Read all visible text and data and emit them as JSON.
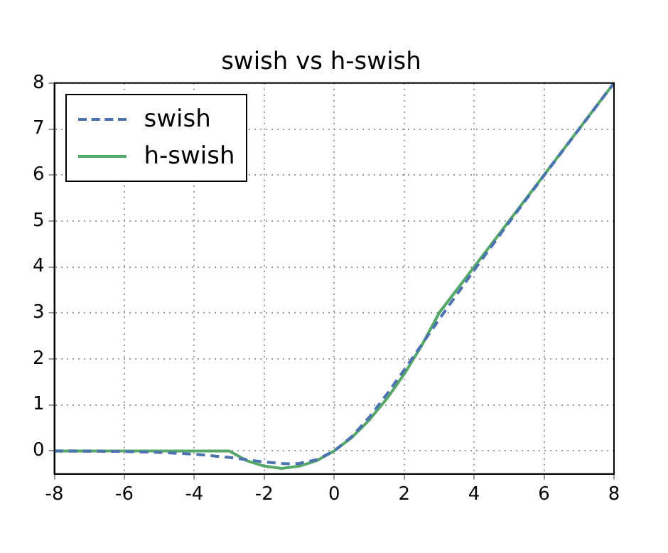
{
  "chart_data": {
    "type": "line",
    "title": "swish vs h-swish",
    "series": [
      {
        "name": "swish",
        "color": "#4c72b0",
        "line_style": "dashed",
        "x": [
          -8,
          -6,
          -5,
          -4,
          -3,
          -2.5,
          -2,
          -1.5,
          -1.25,
          -1,
          -0.5,
          0,
          0.5,
          1,
          1.5,
          2,
          2.5,
          3,
          4,
          5,
          6,
          8
        ],
        "values": [
          0,
          -0.01,
          -0.03,
          -0.07,
          -0.14,
          -0.19,
          -0.24,
          -0.27,
          -0.28,
          -0.27,
          -0.19,
          0,
          0.31,
          0.73,
          1.23,
          1.76,
          2.31,
          2.86,
          3.93,
          4.97,
          5.99,
          8
        ]
      },
      {
        "name": "h-swish",
        "color": "#55a868",
        "line_style": "solid",
        "x": [
          -8,
          -3,
          -2.5,
          -2,
          -1.5,
          -1,
          -0.5,
          0,
          0.5,
          1,
          1.5,
          2,
          2.5,
          3,
          8
        ],
        "values": [
          0,
          0,
          -0.21,
          -0.33,
          -0.38,
          -0.33,
          -0.21,
          0,
          0.29,
          0.67,
          1.13,
          1.67,
          2.29,
          3,
          8
        ]
      }
    ],
    "xlim": [
      -8,
      8
    ],
    "xticks": [
      -8,
      -6,
      -4,
      -2,
      0,
      2,
      4,
      6,
      8
    ],
    "ylim": [
      -0.5,
      8
    ],
    "yticks": [
      0,
      1,
      2,
      3,
      4,
      5,
      6,
      7,
      8
    ],
    "grid": true,
    "legend": "top left"
  }
}
